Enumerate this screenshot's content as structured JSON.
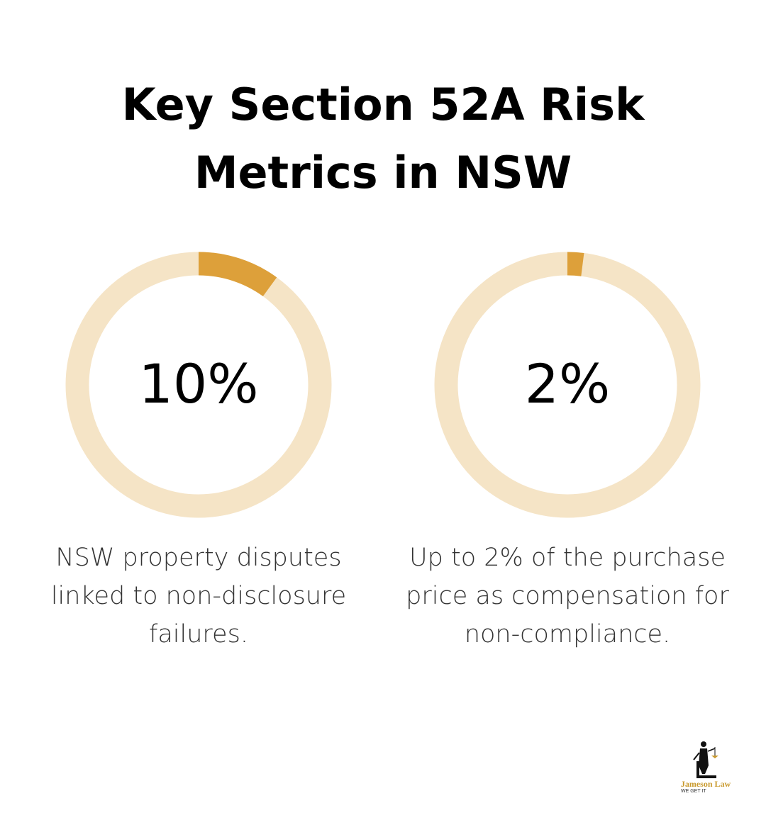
{
  "title": "Key Section 52A Risk Metrics in NSW",
  "chart_data": [
    {
      "type": "donut",
      "values": [
        10
      ],
      "value_labels": [
        "10%"
      ],
      "color": "#dda03a",
      "track_color": "#f5e4c6",
      "caption": "NSW property disputes linked to non-disclosure failures."
    },
    {
      "type": "donut",
      "values": [
        2
      ],
      "value_labels": [
        "2%"
      ],
      "color": "#dda03a",
      "track_color": "#f5e4c6",
      "caption": "Up to 2% of the purchase price as compensation for non-compliance."
    }
  ],
  "logo": {
    "name": "Jameson Law",
    "tagline": "WE GET IT"
  }
}
